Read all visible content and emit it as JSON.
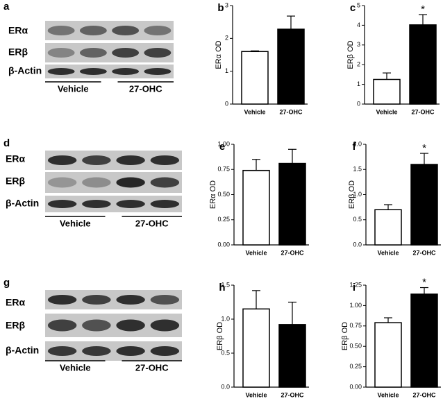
{
  "chart_data": [
    {
      "type": "bar",
      "panel": "b",
      "y_label": "ERα OD",
      "categories": [
        "Vehicle",
        "27-OHC"
      ],
      "values": [
        1.6,
        2.28
      ],
      "errors": [
        0.02,
        0.4
      ],
      "colors": [
        "#ffffff",
        "#000000"
      ],
      "ylim": [
        0,
        3
      ],
      "yticks": [
        0,
        1,
        2,
        3
      ]
    },
    {
      "type": "bar",
      "panel": "c",
      "y_label": "ERβ OD",
      "categories": [
        "Vehicle",
        "27-OHC"
      ],
      "values": [
        1.25,
        4.02
      ],
      "errors": [
        0.33,
        0.52
      ],
      "colors": [
        "#ffffff",
        "#000000"
      ],
      "ylim": [
        0,
        5
      ],
      "yticks": [
        0,
        1,
        2,
        3,
        4,
        5
      ],
      "annotation": "*"
    },
    {
      "type": "bar",
      "panel": "e",
      "y_label": "ERα OD",
      "categories": [
        "Vehicle",
        "27-OHC"
      ],
      "values": [
        0.74,
        0.81
      ],
      "errors": [
        0.11,
        0.14
      ],
      "colors": [
        "#ffffff",
        "#000000"
      ],
      "ylim": [
        0,
        1
      ],
      "yticks": [
        {
          "value": 0,
          "label": "0.00"
        },
        {
          "value": 0.25,
          "label": "0.25"
        },
        {
          "value": 0.5,
          "label": "0.50"
        },
        {
          "value": 0.75,
          "label": "0.75"
        },
        {
          "value": 1,
          "label": "1.00"
        }
      ]
    },
    {
      "type": "bar",
      "panel": "f",
      "y_label": "ERβ OD",
      "categories": [
        "Vehicle",
        "27-OHC"
      ],
      "values": [
        0.7,
        1.6
      ],
      "errors": [
        0.1,
        0.22
      ],
      "colors": [
        "#ffffff",
        "#000000"
      ],
      "ylim": [
        0,
        2
      ],
      "yticks": [
        {
          "value": 0,
          "label": "0.0"
        },
        0.5,
        {
          "value": 1,
          "label": "1.0"
        },
        1.5,
        {
          "value": 2,
          "label": "2.0"
        }
      ],
      "annotation": "*"
    },
    {
      "type": "bar",
      "panel": "h",
      "y_label": "ERβ OD",
      "categories": [
        "Vehicle",
        "27-OHC"
      ],
      "values": [
        1.15,
        0.92
      ],
      "errors": [
        0.27,
        0.33
      ],
      "colors": [
        "#ffffff",
        "#000000"
      ],
      "ylim": [
        0,
        1.5
      ],
      "yticks": [
        {
          "value": 0,
          "label": "0.0"
        },
        0.5,
        {
          "value": 1,
          "label": "1.0"
        },
        1.5
      ]
    },
    {
      "type": "bar",
      "panel": "i",
      "y_label": "ERβ OD",
      "categories": [
        "Vehicle",
        "27-OHC"
      ],
      "values": [
        0.79,
        1.14
      ],
      "errors": [
        0.06,
        0.08
      ],
      "colors": [
        "#ffffff",
        "#000000"
      ],
      "ylim": [
        0,
        1.25
      ],
      "yticks": [
        {
          "value": 0,
          "label": "0.00"
        },
        0.25,
        {
          "value": 0.5,
          "label": "0.50"
        },
        0.75,
        {
          "value": 1,
          "label": "1.00"
        },
        1.25
      ],
      "annotation": "*"
    }
  ],
  "blots": [
    {
      "panel": "a",
      "rows": [
        "ERα",
        "ERβ",
        "β-Actin"
      ],
      "groups": [
        "Vehicle",
        "27-OHC"
      ]
    },
    {
      "panel": "d",
      "rows": [
        "ERα",
        "ERβ",
        "β-Actin"
      ],
      "groups": [
        "Vehicle",
        "27-OHC"
      ]
    },
    {
      "panel": "g",
      "rows": [
        "ERα",
        "ERβ",
        "β-Actin"
      ],
      "groups": [
        "Vehicle",
        "27-OHC"
      ]
    }
  ]
}
